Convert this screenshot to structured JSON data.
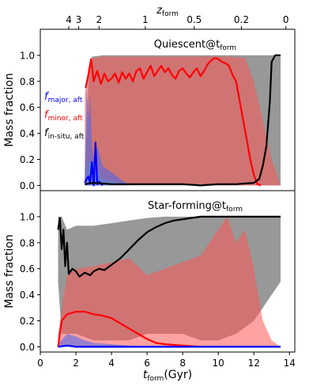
{
  "chart_data": {
    "type": "area",
    "x_unit_label": {
      "main": "t",
      "sub": "form",
      "unit": "(Gyr)"
    },
    "x_ticks": [
      0,
      2,
      4,
      6,
      8,
      10,
      12,
      14
    ],
    "xlim": [
      0,
      14.3
    ],
    "top_axis": {
      "label": {
        "main": "z",
        "sub": "form"
      },
      "ticks": [
        {
          "label": "4",
          "t": 1.6
        },
        {
          "label": "3",
          "t": 2.15
        },
        {
          "label": "2",
          "t": 3.3
        },
        {
          "label": "1",
          "t": 5.9
        },
        {
          "label": "0.5",
          "t": 8.65
        },
        {
          "label": "0.2",
          "t": 11.3
        },
        {
          "label": "0",
          "t": 13.8
        }
      ]
    },
    "colors": {
      "major": "#0000ff",
      "minor": "#ff0000",
      "insitu": "#000000",
      "major_fill": "#4466ee",
      "minor_fill": "#ff5555",
      "insitu_fill": "#444444"
    },
    "legend": [
      {
        "main": "f",
        "sub": "major, aft",
        "color": "#0000ff"
      },
      {
        "main": "f",
        "sub": "minor, aft",
        "color": "#ff0000"
      },
      {
        "main": "f",
        "sub": "in-situ, aft",
        "color": "#000000"
      }
    ],
    "panels": [
      {
        "title_main": "Quiescent@t",
        "title_sub": "form",
        "ylabel": "Mass fraction",
        "ylim": [
          -0.04,
          1.2
        ],
        "y_ticks": [
          "0.0",
          "0.2",
          "0.4",
          "0.6",
          "0.8",
          "1.0"
        ],
        "insitu_band": {
          "x": [
            2.5,
            2.7,
            2.9,
            3.5,
            4.5,
            5.5,
            6.5,
            7.5,
            8.5,
            9.5,
            10.5,
            11.5,
            12.0,
            12.5,
            13.0,
            13.5
          ],
          "lo": [
            0,
            0,
            0,
            0,
            0,
            0,
            0,
            0,
            0,
            0,
            0,
            0,
            0,
            0,
            0,
            0
          ],
          "hi": [
            0.05,
            0.8,
            0.99,
            1.0,
            1.0,
            1.0,
            1.0,
            1.0,
            1.0,
            1.0,
            1.0,
            1.0,
            1.0,
            1.0,
            1.0,
            1.0
          ]
        },
        "minor_band": {
          "x": [
            2.5,
            2.7,
            2.9,
            3.5,
            4.5,
            5.5,
            6.5,
            7.5,
            8.5,
            9.0,
            9.5,
            10.5,
            11.5,
            12.0,
            12.5,
            13.0,
            13.5
          ],
          "lo": [
            0,
            0.2,
            0.15,
            0.05,
            0.02,
            0.01,
            0.01,
            0.01,
            0.01,
            0.01,
            0.0,
            0.0,
            0.0,
            0.0,
            0.0,
            0.0,
            0.0
          ],
          "hi": [
            0.7,
            0.9,
            0.98,
            0.99,
            0.99,
            0.99,
            0.99,
            0.99,
            0.99,
            0.99,
            0.99,
            0.99,
            0.98,
            0.8,
            0.5,
            0.2,
            0.0
          ]
        },
        "major_band": {
          "x": [
            2.5,
            2.6,
            2.7,
            2.8,
            2.9,
            3.0,
            3.2,
            3.5,
            4.0,
            4.5,
            5.0
          ],
          "lo": [
            0,
            0,
            0,
            0,
            0,
            0,
            0,
            0,
            0,
            0,
            0
          ],
          "hi": [
            0.1,
            0.8,
            0.5,
            0.7,
            0.3,
            0.2,
            0.3,
            0.15,
            0.1,
            0.05,
            0.0
          ]
        },
        "series": [
          {
            "key": "minor",
            "x": [
              2.55,
              2.7,
              2.85,
              3.0,
              3.2,
              3.4,
              3.6,
              3.8,
              4.0,
              4.2,
              4.4,
              4.6,
              4.8,
              5.0,
              5.2,
              5.4,
              5.6,
              5.8,
              6.0,
              6.2,
              6.4,
              6.6,
              6.8,
              7.0,
              7.2,
              7.4,
              7.6,
              7.8,
              8.0,
              8.2,
              8.4,
              8.6,
              8.8,
              9.0,
              9.2,
              9.4,
              9.6,
              9.8,
              10.0,
              10.2,
              10.4,
              10.6,
              10.8,
              11.0,
              11.2,
              11.4,
              11.6,
              11.8,
              12.0,
              12.2,
              12.4
            ],
            "y": [
              0.75,
              0.85,
              0.97,
              0.8,
              0.88,
              0.78,
              0.86,
              0.8,
              0.82,
              0.86,
              0.79,
              0.87,
              0.82,
              0.86,
              0.8,
              0.88,
              0.9,
              0.82,
              0.87,
              0.92,
              0.84,
              0.88,
              0.92,
              0.87,
              0.9,
              0.85,
              0.82,
              0.88,
              0.9,
              0.86,
              0.83,
              0.87,
              0.9,
              0.84,
              0.88,
              0.93,
              0.96,
              0.98,
              0.97,
              0.95,
              0.94,
              0.92,
              0.85,
              0.8,
              0.65,
              0.5,
              0.35,
              0.2,
              0.08,
              0.01,
              0.0
            ]
          },
          {
            "key": "major",
            "x": [
              2.5,
              2.6,
              2.7,
              2.8,
              2.9,
              3.0,
              3.1,
              3.2,
              3.3,
              3.5
            ],
            "y": [
              0.02,
              0.05,
              0.07,
              0.02,
              0.18,
              0.0,
              0.33,
              0.01,
              0.03,
              0.0
            ]
          },
          {
            "key": "insitu",
            "x": [
              2.5,
              3.0,
              4.0,
              5.0,
              6.0,
              7.0,
              8.0,
              9.0,
              10.0,
              11.0,
              12.0,
              12.3,
              12.5,
              12.7,
              12.9,
              13.0,
              13.2,
              13.5
            ],
            "y": [
              0.01,
              0.02,
              0.01,
              0.01,
              0.01,
              0.01,
              0.01,
              0.0,
              0.01,
              0.01,
              0.02,
              0.05,
              0.15,
              0.3,
              0.65,
              0.95,
              1.0,
              1.0
            ]
          }
        ]
      },
      {
        "title_main": "Star-forming@t",
        "title_sub": "form",
        "ylabel": "Mass fraction",
        "ylim": [
          -0.04,
          1.2
        ],
        "y_ticks": [
          "0.0",
          "0.2",
          "0.4",
          "0.6",
          "0.8",
          "1.0"
        ],
        "insitu_band": {
          "x": [
            1.0,
            1.2,
            1.5,
            2.0,
            3.0,
            4.0,
            5.0,
            6.0,
            7.0,
            8.0,
            9.0,
            10.0,
            11.0,
            12.0,
            12.5,
            13.0,
            13.5
          ],
          "lo": [
            0.5,
            0.1,
            0.1,
            0.1,
            0.05,
            0.05,
            0.05,
            0.1,
            0.1,
            0.1,
            0.05,
            0.05,
            0.1,
            0.2,
            0.3,
            0.4,
            0.5
          ],
          "hi": [
            1.0,
            1.0,
            0.9,
            0.93,
            0.93,
            0.95,
            0.97,
            0.99,
            1.0,
            1.0,
            1.0,
            1.0,
            1.0,
            1.0,
            1.0,
            1.0,
            1.0
          ]
        },
        "minor_band": {
          "x": [
            1.0,
            1.5,
            2.0,
            3.0,
            4.0,
            5.0,
            6.0,
            7.0,
            8.0,
            9.0,
            10.0,
            10.5,
            11.0,
            11.5,
            12.0,
            12.5,
            13.0,
            13.5
          ],
          "lo": [
            0.0,
            0.0,
            0.0,
            0.0,
            0.0,
            0.0,
            0.0,
            0.0,
            0.0,
            0.0,
            0.0,
            0.0,
            0.0,
            0.0,
            0.0,
            0.0,
            0.0,
            0.0
          ],
          "hi": [
            0.1,
            0.55,
            0.6,
            0.62,
            0.65,
            0.68,
            0.55,
            0.6,
            0.65,
            0.7,
            0.9,
            1.0,
            0.8,
            0.9,
            0.6,
            0.2,
            0.05,
            0.0
          ]
        },
        "major_band": {
          "x": [
            1.0,
            1.5,
            2.0,
            2.5,
            3.0,
            4.0,
            5.0,
            6.0
          ],
          "lo": [
            0,
            0,
            0,
            0,
            0,
            0,
            0,
            0
          ],
          "hi": [
            0.02,
            0.1,
            0.08,
            0.05,
            0.03,
            0.02,
            0.01,
            0.0
          ]
        },
        "series": [
          {
            "key": "insitu",
            "x": [
              1.0,
              1.1,
              1.2,
              1.3,
              1.4,
              1.5,
              1.6,
              1.8,
              2.0,
              2.2,
              2.5,
              2.8,
              3.0,
              3.3,
              3.6,
              4.0,
              4.5,
              5.0,
              5.5,
              6.0,
              6.5,
              7.0,
              7.5,
              8.0,
              8.5,
              9.0,
              10.0,
              11.0,
              12.0,
              13.0,
              13.5
            ],
            "y": [
              0.9,
              0.99,
              0.75,
              0.9,
              0.62,
              0.8,
              0.56,
              0.6,
              0.58,
              0.54,
              0.57,
              0.55,
              0.58,
              0.6,
              0.59,
              0.63,
              0.68,
              0.75,
              0.82,
              0.88,
              0.92,
              0.95,
              0.97,
              0.98,
              0.99,
              1.0,
              1.0,
              1.0,
              1.0,
              1.0,
              1.0
            ]
          },
          {
            "key": "minor",
            "x": [
              1.0,
              1.2,
              1.5,
              2.0,
              2.5,
              3.0,
              3.5,
              4.0,
              4.5,
              5.0,
              5.5,
              6.0,
              6.5,
              7.0,
              8.0,
              9.0,
              10.0,
              11.0,
              12.0,
              13.0,
              13.5
            ],
            "y": [
              0.0,
              0.2,
              0.25,
              0.27,
              0.27,
              0.25,
              0.24,
              0.22,
              0.18,
              0.14,
              0.1,
              0.06,
              0.03,
              0.02,
              0.01,
              0.0,
              0.0,
              0.0,
              0.0,
              0.0,
              0.0
            ]
          },
          {
            "key": "major",
            "x": [
              1.0,
              1.5,
              2.0,
              3.0,
              4.0,
              6.0,
              8.0,
              10.0,
              12.0,
              13.5
            ],
            "y": [
              0.0,
              0.01,
              0.0,
              0.0,
              0.0,
              0.0,
              0.0,
              0.0,
              0.0,
              0.0
            ]
          }
        ]
      }
    ]
  }
}
